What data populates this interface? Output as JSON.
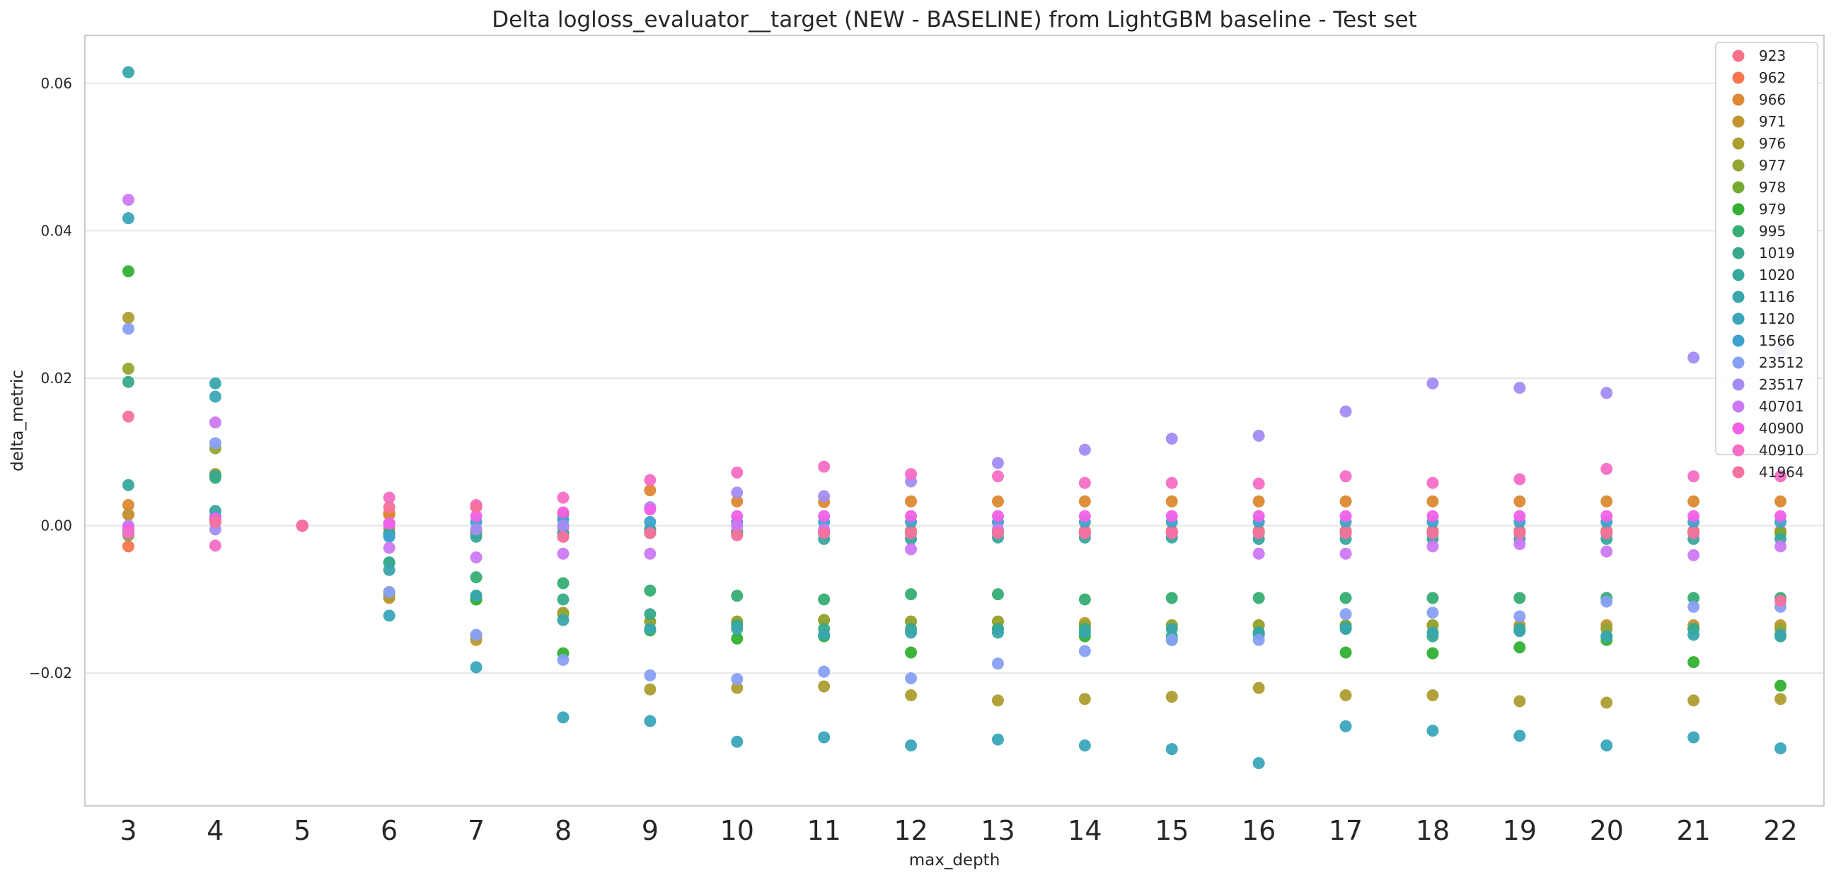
{
  "chart_data": {
    "type": "scatter",
    "title": "Delta logloss_evaluator__target (NEW - BASELINE) from LightGBM baseline - Test set",
    "xlabel": "max_depth",
    "ylabel": "delta_metric",
    "categories": [
      "3",
      "4",
      "5",
      "6",
      "7",
      "8",
      "9",
      "10",
      "11",
      "12",
      "13",
      "14",
      "15",
      "16",
      "17",
      "18",
      "19",
      "20",
      "21",
      "22"
    ],
    "ylim": [
      -0.038,
      0.0665
    ],
    "yticks": [
      -0.02,
      0.0,
      0.02,
      0.04,
      0.06
    ],
    "ytick_labels": [
      "−0.02",
      "0.00",
      "0.02",
      "0.04",
      "0.06"
    ],
    "grid": "horizontal",
    "legend_position": "top-right",
    "series": [
      {
        "name": "923",
        "color": "#f77189",
        "values": [
          0.0015,
          0.0008,
          0,
          -0.0003,
          -0.0008,
          -0.0002,
          -0.0008,
          -0.0009,
          -0.0009,
          -0.0009,
          -0.0009,
          -0.0009,
          -0.0009,
          -0.0009,
          -0.0009,
          -0.0009,
          -0.0009,
          -0.0009,
          -0.0009,
          -0.0009
        ]
      },
      {
        "name": "962",
        "color": "#f7754f",
        "values": [
          -0.0028,
          0.0005,
          0,
          0.0015,
          -0.0005,
          -0.0015,
          -0.0005,
          -0.0008,
          -0.0007,
          -0.0007,
          -0.0007,
          -0.0007,
          -0.0007,
          -0.0007,
          -0.0007,
          -0.0007,
          -0.0007,
          -0.0007,
          -0.0007,
          -0.0007
        ]
      },
      {
        "name": "966",
        "color": "#dc8932",
        "values": [
          0.0028,
          0.0012,
          0,
          0.0017,
          -0.001,
          0.0015,
          0.0048,
          0.0033,
          0.0032,
          0.0033,
          0.0033,
          0.0033,
          0.0033,
          0.0033,
          0.0033,
          0.0033,
          0.0033,
          0.0033,
          0.0033,
          0.0033
        ]
      },
      {
        "name": "971",
        "color": "#c39532",
        "values": [
          0.0015,
          0.007,
          0,
          -0.0098,
          -0.0155,
          -0.012,
          -0.013,
          -0.013,
          -0.0128,
          -0.013,
          -0.013,
          -0.0132,
          -0.0135,
          -0.0135,
          -0.0135,
          -0.0135,
          -0.0135,
          -0.0135,
          -0.0135,
          -0.0135
        ]
      },
      {
        "name": "976",
        "color": "#ae9d31",
        "values": [
          0.0282,
          0.0005,
          0,
          -0.0095,
          -0.015,
          -0.0118,
          -0.0222,
          -0.022,
          -0.0218,
          -0.023,
          -0.0237,
          -0.0235,
          -0.0232,
          -0.022,
          -0.023,
          -0.023,
          -0.0238,
          -0.024,
          -0.0237,
          -0.0235
        ]
      },
      {
        "name": "977",
        "color": "#97a431",
        "values": [
          0.0213,
          0.0105,
          0,
          -0.009,
          -0.01,
          -0.012,
          -0.013,
          -0.013,
          -0.0128,
          -0.013,
          -0.013,
          -0.0135,
          -0.0135,
          -0.0135,
          -0.0135,
          -0.0135,
          -0.014,
          -0.014,
          -0.014,
          -0.014
        ]
      },
      {
        "name": "978",
        "color": "#77ab31",
        "values": [
          -0.0013,
          0.001,
          0,
          -0.001,
          -0.001,
          -0.001,
          -0.001,
          -0.001,
          -0.001,
          -0.001,
          -0.001,
          -0.001,
          -0.001,
          -0.001,
          -0.001,
          -0.001,
          -0.001,
          -0.001,
          -0.001,
          -0.001
        ]
      },
      {
        "name": "979",
        "color": "#33b032",
        "values": [
          0.0345,
          0.0008,
          0,
          -0.001,
          -0.01,
          -0.0173,
          -0.0142,
          -0.0153,
          -0.015,
          -0.0172,
          -0.014,
          -0.015,
          -0.0155,
          -0.0145,
          -0.0172,
          -0.0173,
          -0.0165,
          -0.0155,
          -0.0185,
          -0.0217
        ]
      },
      {
        "name": "995",
        "color": "#36ad73",
        "values": [
          -0.001,
          0.0065,
          0,
          -0.005,
          -0.007,
          -0.0078,
          -0.0088,
          -0.0095,
          -0.01,
          -0.0093,
          -0.0093,
          -0.01,
          -0.0098,
          -0.0098,
          -0.0098,
          -0.0098,
          -0.0098,
          -0.0098,
          -0.0098,
          -0.0098
        ]
      },
      {
        "name": "1019",
        "color": "#37aa8c",
        "values": [
          0.0195,
          0.0068,
          0,
          -0.005,
          -0.0095,
          -0.01,
          -0.012,
          -0.0135,
          -0.014,
          -0.014,
          -0.014,
          -0.014,
          -0.015,
          -0.0148,
          -0.0138,
          -0.015,
          -0.014,
          -0.015,
          -0.014,
          -0.015
        ]
      },
      {
        "name": "1020",
        "color": "#38a89d",
        "values": [
          0.0055,
          0.002,
          0,
          -0.0012,
          -0.0015,
          -0.001,
          -0.0005,
          -0.001,
          -0.0018,
          -0.0018,
          -0.0016,
          -0.0016,
          -0.0016,
          -0.0018,
          -0.0018,
          -0.0018,
          -0.0018,
          -0.0018,
          -0.0018,
          -0.0018
        ]
      },
      {
        "name": "1116",
        "color": "#39a7ac",
        "values": [
          0.0615,
          0.0193,
          0,
          -0.006,
          -0.0095,
          -0.0128,
          -0.014,
          -0.014,
          -0.0148,
          -0.0145,
          -0.0145,
          -0.0145,
          -0.014,
          -0.0145,
          -0.014,
          -0.0145,
          -0.0143,
          -0.015,
          -0.0148,
          -0.0148
        ]
      },
      {
        "name": "1120",
        "color": "#3aa5bb",
        "values": [
          0.0417,
          0.0175,
          0,
          -0.0122,
          -0.0192,
          -0.026,
          -0.0265,
          -0.0293,
          -0.0287,
          -0.0298,
          -0.029,
          -0.0298,
          -0.0303,
          -0.0322,
          -0.0272,
          -0.0278,
          -0.0285,
          -0.0298,
          -0.0287,
          -0.0302
        ]
      },
      {
        "name": "1566",
        "color": "#3ca2cd",
        "values": [
          -0.0005,
          0.0012,
          0,
          -0.0015,
          0.0005,
          0.0008,
          0.0005,
          0.0005,
          0.0005,
          0.0005,
          0.0005,
          0.0005,
          0.0005,
          0.0005,
          0.0005,
          0.0005,
          0.0005,
          0.0005,
          0.0005,
          0.0005
        ]
      },
      {
        "name": "23512",
        "color": "#88a0f4",
        "values": [
          0.0267,
          0.0112,
          0,
          -0.009,
          -0.0148,
          -0.0182,
          -0.0203,
          -0.0208,
          -0.0198,
          -0.0207,
          -0.0187,
          -0.017,
          -0.0155,
          -0.0155,
          -0.012,
          -0.0118,
          -0.0123,
          -0.0103,
          -0.011,
          -0.011
        ]
      },
      {
        "name": "23517",
        "color": "#a48cf4",
        "values": [
          0.0,
          -0.0005,
          0,
          0.0003,
          -0.0005,
          0.0,
          0.0025,
          0.0045,
          0.004,
          0.006,
          0.0085,
          0.0103,
          0.0118,
          0.0122,
          0.0155,
          0.0193,
          0.0187,
          0.018,
          0.0228,
          0.0237
        ]
      },
      {
        "name": "40701",
        "color": "#cc79f4",
        "values": [
          0.0442,
          0.014,
          0,
          -0.003,
          -0.0043,
          -0.0038,
          -0.0038,
          0.0,
          -0.0005,
          -0.0032,
          -0.0005,
          -0.001,
          -0.001,
          -0.0038,
          -0.0038,
          -0.0028,
          -0.0025,
          -0.0035,
          -0.004,
          -0.0028
        ]
      },
      {
        "name": "40900",
        "color": "#f161e6",
        "values": [
          -0.0003,
          0.001,
          0,
          0.0003,
          0.0013,
          0.0018,
          0.0022,
          0.0013,
          0.0013,
          0.0013,
          0.0013,
          0.0013,
          0.0013,
          0.0013,
          0.0013,
          0.0013,
          0.0013,
          0.0013,
          0.0013,
          0.0013
        ]
      },
      {
        "name": "40910",
        "color": "#f56ec6",
        "values": [
          -0.001,
          -0.0027,
          0,
          0.0038,
          0.0028,
          0.0038,
          0.0062,
          0.0072,
          0.008,
          0.007,
          0.0067,
          0.0058,
          0.0058,
          0.0057,
          0.0067,
          0.0058,
          0.0063,
          0.0077,
          0.0067,
          0.0067
        ]
      },
      {
        "name": "41964",
        "color": "#f6719f",
        "values": [
          0.0148,
          0.0005,
          0,
          0.0025,
          0.0025,
          -0.0015,
          -0.001,
          -0.0013,
          -0.001,
          -0.001,
          -0.001,
          -0.001,
          -0.001,
          -0.001,
          -0.001,
          -0.001,
          -0.001,
          -0.001,
          -0.001,
          -0.0102
        ]
      }
    ]
  }
}
